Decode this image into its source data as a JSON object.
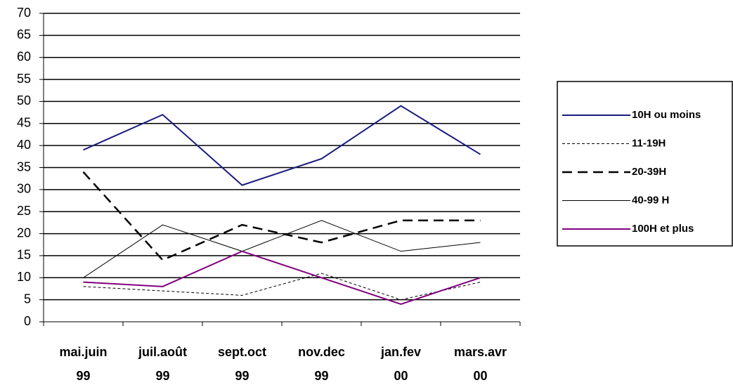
{
  "chart_data": {
    "type": "line",
    "categories": [
      [
        "mai.juin",
        "99"
      ],
      [
        "juil.août",
        "99"
      ],
      [
        "sept.oct",
        "99"
      ],
      [
        "nov.dec",
        "99"
      ],
      [
        "jan.fev",
        "00"
      ],
      [
        "mars.avr",
        "00"
      ]
    ],
    "series": [
      {
        "name": "10H ou moins",
        "color": "#1a1a80",
        "style": "solid",
        "width": 2,
        "values": [
          39,
          47,
          31,
          37,
          49,
          38
        ]
      },
      {
        "name": "11-19H",
        "color": "#000000",
        "style": "dotted",
        "width": 1,
        "values": [
          8,
          7,
          6,
          11,
          5,
          9
        ]
      },
      {
        "name": "20-39H",
        "color": "#000000",
        "style": "dashed",
        "width": 2.5,
        "values": [
          34,
          14,
          22,
          18,
          23,
          23
        ]
      },
      {
        "name": "40-99 H",
        "color": "#000000",
        "style": "solid",
        "width": 1,
        "values": [
          10,
          22,
          16,
          23,
          16,
          18
        ]
      },
      {
        "name": "100H et plus",
        "color": "#800080",
        "style": "solid",
        "width": 2,
        "values": [
          9,
          8,
          16,
          10,
          4,
          10
        ]
      }
    ],
    "ylim": [
      0,
      70
    ],
    "yticks": [
      0,
      5,
      10,
      15,
      20,
      25,
      30,
      35,
      40,
      45,
      50,
      55,
      60,
      65,
      70
    ],
    "grid": true,
    "legend": "right"
  }
}
